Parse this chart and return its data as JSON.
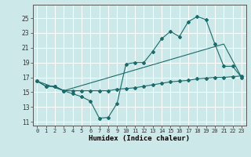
{
  "xlabel": "Humidex (Indice chaleur)",
  "background_color": "#cce8e8",
  "grid_color": "#ffffff",
  "line_color": "#1a6b6b",
  "xlim": [
    -0.5,
    23.5
  ],
  "ylim": [
    10.5,
    26.8
  ],
  "yticks": [
    11,
    13,
    15,
    17,
    19,
    21,
    23,
    25
  ],
  "xticks": [
    0,
    1,
    2,
    3,
    4,
    5,
    6,
    7,
    8,
    9,
    10,
    11,
    12,
    13,
    14,
    15,
    16,
    17,
    18,
    19,
    20,
    21,
    22,
    23
  ],
  "line1_x": [
    0,
    1,
    2,
    3,
    4,
    5,
    6,
    7,
    8,
    9,
    10,
    11,
    12,
    13,
    14,
    15,
    16,
    17,
    18,
    19,
    20,
    21,
    22,
    23
  ],
  "line1_y": [
    16.5,
    15.8,
    15.8,
    15.2,
    14.8,
    14.4,
    13.8,
    11.5,
    11.6,
    13.5,
    18.8,
    19.0,
    19.0,
    20.5,
    22.2,
    23.2,
    22.5,
    24.5,
    25.2,
    24.8,
    21.5,
    18.5,
    18.5,
    17.0
  ],
  "line2_x": [
    0,
    1,
    2,
    3,
    4,
    5,
    6,
    7,
    8,
    9,
    10,
    11,
    12,
    13,
    14,
    15,
    16,
    17,
    18,
    19,
    20,
    21,
    22,
    23
  ],
  "line2_y": [
    16.5,
    15.8,
    15.8,
    15.2,
    15.2,
    15.2,
    15.2,
    15.2,
    15.2,
    15.4,
    15.5,
    15.6,
    15.8,
    16.0,
    16.2,
    16.4,
    16.5,
    16.6,
    16.8,
    16.9,
    17.0,
    17.0,
    17.1,
    17.2
  ],
  "line3_x": [
    0,
    3,
    21,
    23
  ],
  "line3_y": [
    16.5,
    15.2,
    21.5,
    17.0
  ]
}
